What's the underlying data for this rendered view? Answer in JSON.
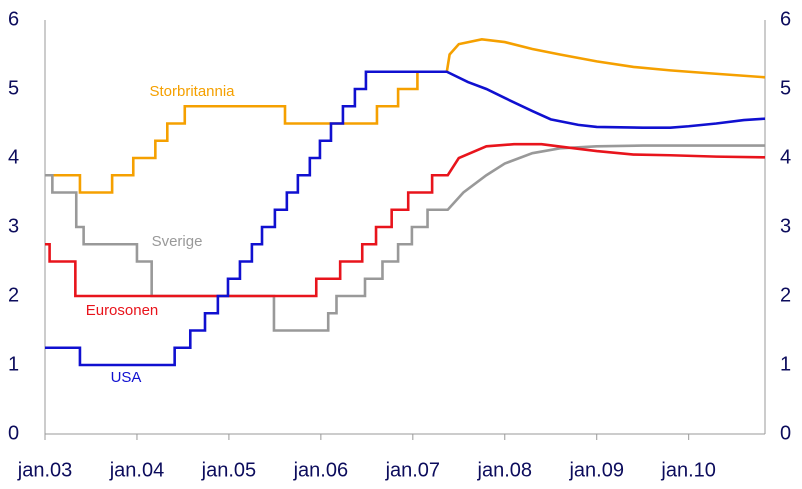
{
  "chart_data": {
    "type": "line",
    "xlim": [
      2003,
      2010.83
    ],
    "xticks": [
      {
        "value": 2003,
        "label": "jan.03"
      },
      {
        "value": 2004,
        "label": "jan.04"
      },
      {
        "value": 2005,
        "label": "jan.05"
      },
      {
        "value": 2006,
        "label": "jan.06"
      },
      {
        "value": 2007,
        "label": "jan.07"
      },
      {
        "value": 2008,
        "label": "jan.08"
      },
      {
        "value": 2009,
        "label": "jan.09"
      },
      {
        "value": 2010,
        "label": "jan.10"
      }
    ],
    "ylim": [
      0,
      6
    ],
    "yticks": [
      0,
      1,
      2,
      3,
      4,
      5,
      6
    ],
    "y2lim": [
      0,
      6
    ],
    "y2ticks": [
      0,
      1,
      2,
      3,
      4,
      5,
      6
    ],
    "series": [
      {
        "name": "Storbritannia",
        "color": "#f5a000",
        "x": [
          2003,
          2003.38,
          2003.38,
          2003.73,
          2003.73,
          2003.96,
          2003.96,
          2004.2,
          2004.2,
          2004.33,
          2004.33,
          2004.52,
          2004.52,
          2005.61,
          2005.61,
          2006.61,
          2006.61,
          2006.84,
          2006.84,
          2007.05,
          2007.05,
          2007.37,
          2007.4,
          2007.5,
          2007.75,
          2008.0,
          2008.3,
          2008.6,
          2009.0,
          2009.4,
          2009.8,
          2010.2,
          2010.83
        ],
        "values": [
          3.75,
          3.75,
          3.5,
          3.5,
          3.75,
          3.75,
          4.0,
          4.0,
          4.25,
          4.25,
          4.5,
          4.5,
          4.75,
          4.75,
          4.5,
          4.5,
          4.75,
          4.75,
          5.0,
          5.0,
          5.25,
          5.25,
          5.5,
          5.65,
          5.72,
          5.68,
          5.58,
          5.5,
          5.4,
          5.32,
          5.27,
          5.23,
          5.17
        ]
      },
      {
        "name": "Sverige",
        "color": "#999999",
        "x": [
          2003,
          2003.08,
          2003.08,
          2003.34,
          2003.34,
          2003.42,
          2003.42,
          2004.0,
          2004.0,
          2004.16,
          2004.16,
          2005.49,
          2005.49,
          2006.08,
          2006.08,
          2006.17,
          2006.17,
          2006.48,
          2006.48,
          2006.67,
          2006.67,
          2006.84,
          2006.84,
          2006.99,
          2006.99,
          2007.16,
          2007.16,
          2007.38,
          2007.55,
          2007.8,
          2008.0,
          2008.3,
          2008.6,
          2009.0,
          2009.5,
          2010.83
        ],
        "values": [
          3.75,
          3.75,
          3.5,
          3.5,
          3.0,
          3.0,
          2.75,
          2.75,
          2.5,
          2.5,
          2.0,
          2.0,
          1.5,
          1.5,
          1.75,
          1.75,
          2.0,
          2.0,
          2.25,
          2.25,
          2.5,
          2.5,
          2.75,
          2.75,
          3.0,
          3.0,
          3.25,
          3.25,
          3.5,
          3.75,
          3.92,
          4.07,
          4.14,
          4.17,
          4.18,
          4.18
        ]
      },
      {
        "name": "Eurosonen",
        "color": "#e8141c",
        "x": [
          2003,
          2003.05,
          2003.05,
          2003.33,
          2003.33,
          2005.95,
          2005.95,
          2006.21,
          2006.21,
          2006.45,
          2006.45,
          2006.6,
          2006.6,
          2006.77,
          2006.77,
          2006.95,
          2006.95,
          2007.21,
          2007.21,
          2007.38,
          2007.5,
          2007.8,
          2008.1,
          2008.4,
          2008.7,
          2009.0,
          2009.4,
          2009.8,
          2010.3,
          2010.83
        ],
        "values": [
          2.75,
          2.75,
          2.5,
          2.5,
          2.0,
          2.0,
          2.25,
          2.25,
          2.5,
          2.5,
          2.75,
          2.75,
          3.0,
          3.0,
          3.25,
          3.25,
          3.5,
          3.5,
          3.75,
          3.75,
          4.0,
          4.17,
          4.2,
          4.2,
          4.15,
          4.1,
          4.05,
          4.04,
          4.02,
          4.01
        ]
      },
      {
        "name": "USA",
        "color": "#1010d0",
        "x": [
          2003,
          2003.38,
          2003.38,
          2004.41,
          2004.41,
          2004.58,
          2004.58,
          2004.74,
          2004.74,
          2004.88,
          2004.88,
          2004.99,
          2004.99,
          2005.12,
          2005.12,
          2005.25,
          2005.25,
          2005.36,
          2005.36,
          2005.5,
          2005.5,
          2005.63,
          2005.63,
          2005.75,
          2005.75,
          2005.88,
          2005.88,
          2005.99,
          2005.99,
          2006.11,
          2006.11,
          2006.24,
          2006.24,
          2006.37,
          2006.37,
          2006.49,
          2006.49,
          2007.37,
          2007.6,
          2007.8,
          2008.0,
          2008.3,
          2008.5,
          2008.8,
          2009.0,
          2009.5,
          2009.8,
          2010.0,
          2010.3,
          2010.6,
          2010.83
        ],
        "values": [
          1.25,
          1.25,
          1.0,
          1.0,
          1.25,
          1.25,
          1.5,
          1.5,
          1.75,
          1.75,
          2.0,
          2.0,
          2.25,
          2.25,
          2.5,
          2.5,
          2.75,
          2.75,
          3.0,
          3.0,
          3.25,
          3.25,
          3.5,
          3.5,
          3.75,
          3.75,
          4.0,
          4.0,
          4.25,
          4.25,
          4.5,
          4.5,
          4.75,
          4.75,
          5.0,
          5.0,
          5.25,
          5.25,
          5.1,
          5.0,
          4.87,
          4.68,
          4.56,
          4.48,
          4.45,
          4.44,
          4.44,
          4.46,
          4.5,
          4.55,
          4.57
        ]
      }
    ]
  }
}
